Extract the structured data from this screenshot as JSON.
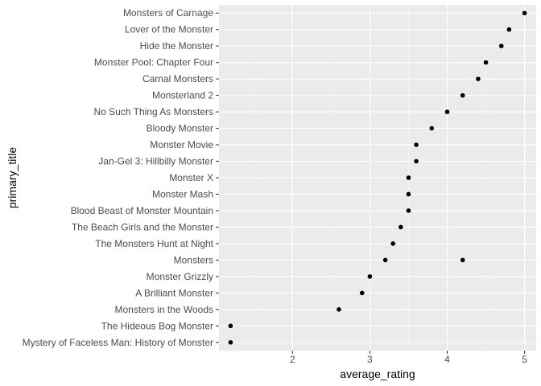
{
  "chart_data": {
    "type": "scatter",
    "title": "",
    "xlabel": "average_rating",
    "ylabel": "primary_title",
    "xlim": [
      1.05,
      5.15
    ],
    "x_ticks": [
      "2",
      "3",
      "4",
      "5"
    ],
    "categories": [
      "Monsters of Carnage",
      "Lover of the Monster",
      "Hide the Monster",
      "Monster Pool: Chapter Four",
      "Carnal Monsters",
      "Monsterland 2",
      "No Such Thing As Monsters",
      "Bloody Monster",
      "Monster Movie",
      "Jan-Gel 3: Hillbilly Monster",
      "Monster X",
      "Monster Mash",
      "Blood Beast of Monster Mountain",
      "The Beach Girls and the Monster",
      "The Monsters Hunt at Night",
      "Monsters",
      "Monster Grizzly",
      "A Brilliant Monster",
      "Monsters in the Woods",
      "The Hideous Bog Monster",
      "Mystery of Faceless Man: History of Monster"
    ],
    "points": [
      {
        "category": "Monsters of Carnage",
        "x": 5.0
      },
      {
        "category": "Lover of the Monster",
        "x": 4.8
      },
      {
        "category": "Hide the Monster",
        "x": 4.7
      },
      {
        "category": "Monster Pool: Chapter Four",
        "x": 4.5
      },
      {
        "category": "Carnal Monsters",
        "x": 4.4
      },
      {
        "category": "Monsterland 2",
        "x": 4.2
      },
      {
        "category": "No Such Thing As Monsters",
        "x": 4.0
      },
      {
        "category": "Bloody Monster",
        "x": 3.8
      },
      {
        "category": "Monster Movie",
        "x": 3.6
      },
      {
        "category": "Jan-Gel 3: Hillbilly Monster",
        "x": 3.6
      },
      {
        "category": "Monster X",
        "x": 3.5
      },
      {
        "category": "Monster Mash",
        "x": 3.5
      },
      {
        "category": "Blood Beast of Monster Mountain",
        "x": 3.5
      },
      {
        "category": "The Beach Girls and the Monster",
        "x": 3.4
      },
      {
        "category": "The Monsters Hunt at Night",
        "x": 3.3
      },
      {
        "category": "Monsters",
        "x": 3.2
      },
      {
        "category": "Monsters",
        "x": 4.2
      },
      {
        "category": "Monster Grizzly",
        "x": 3.0
      },
      {
        "category": "A Brilliant Monster",
        "x": 2.9
      },
      {
        "category": "Monsters in the Woods",
        "x": 2.6
      },
      {
        "category": "The Hideous Bog Monster",
        "x": 1.2
      },
      {
        "category": "Mystery of Faceless Man: History of Monster",
        "x": 1.2
      }
    ],
    "grid": true,
    "legend": "none",
    "colors": {
      "panel": "#ebebeb",
      "grid_major": "#ffffff",
      "grid_minor": "#f5f5f5",
      "point": "#000000",
      "tick": "#333333"
    }
  }
}
